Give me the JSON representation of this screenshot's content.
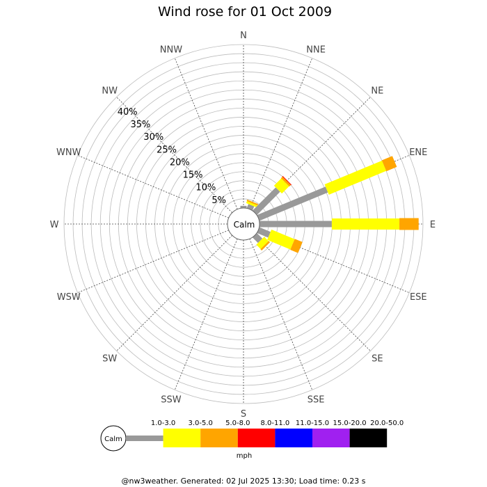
{
  "chart_data": {
    "type": "wind-rose",
    "title": "Wind rose for 01 Oct 2009",
    "center_label": "Calm",
    "directions": [
      "N",
      "NNE",
      "NE",
      "ENE",
      "E",
      "ESE",
      "SE",
      "SSE",
      "S",
      "SSW",
      "SW",
      "WSW",
      "W",
      "WNW",
      "NW",
      "NNW"
    ],
    "radial_ticks": [
      {
        "value": 5,
        "label": "5%"
      },
      {
        "value": 10,
        "label": "10%"
      },
      {
        "value": 15,
        "label": "15%"
      },
      {
        "value": 20,
        "label": "20%"
      },
      {
        "value": 25,
        "label": "25%"
      },
      {
        "value": 30,
        "label": "30%"
      },
      {
        "value": 35,
        "label": "35%"
      },
      {
        "value": 40,
        "label": "40%"
      }
    ],
    "rmax": 45,
    "grid": true,
    "speed_bins": [
      {
        "label": "1.0-3.0",
        "color": "#999999"
      },
      {
        "label": "3.0-5.0",
        "color": "#ffff00"
      },
      {
        "label": "5.0-8.0",
        "color": "#ffa500"
      },
      {
        "label": "8.0-11.0",
        "color": "#ff0000"
      },
      {
        "label": "11.0-15.0",
        "color": "#0000ff"
      },
      {
        "label": "15.0-20.0",
        "color": "#a020f0"
      },
      {
        "label": "20.0-50.0",
        "color": "#000000"
      }
    ],
    "unit": "mph",
    "series": [
      {
        "direction": "N",
        "cumulative": [
          0.6
        ]
      },
      {
        "direction": "NNE",
        "cumulative": [
          1.2,
          1.8,
          2.2
        ]
      },
      {
        "direction": "NE",
        "cumulative": [
          9.0,
          11.8,
          12.4,
          12.6
        ]
      },
      {
        "direction": "ENE",
        "cumulative": [
          20.4,
          37.5,
          40.6
        ]
      },
      {
        "direction": "E",
        "cumulative": [
          19.9,
          38.5,
          43.8
        ]
      },
      {
        "direction": "ESE",
        "cumulative": [
          3.3,
          10.2,
          12.5
        ]
      },
      {
        "direction": "SE",
        "cumulative": [
          2.1,
          3.8,
          4.3
        ]
      }
    ]
  },
  "footer": "@nw3weather. Generated: 02 Jul 2025 13:30; Load time: 0.23 s"
}
